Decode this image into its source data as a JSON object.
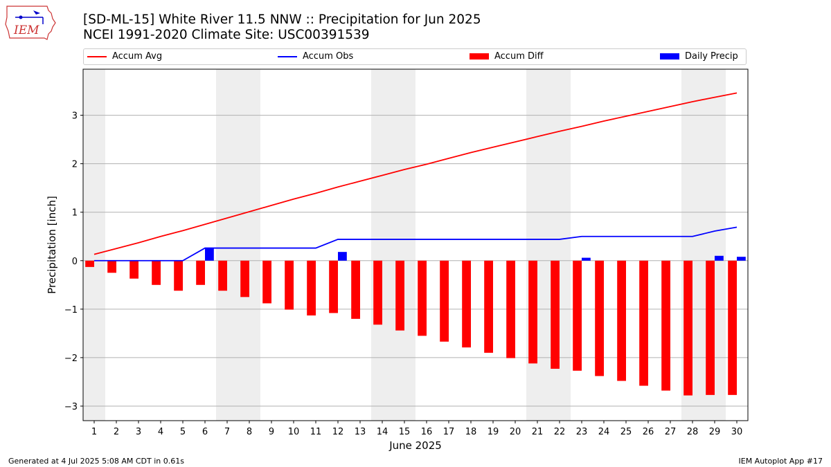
{
  "header": {
    "title_line1": "[SD-ML-15] White River 11.5 NNW :: Precipitation for Jun 2025",
    "title_line2": "NCEI 1991-2020 Climate Site: USC00391539",
    "logo_text": "IEM"
  },
  "footer": {
    "generated": "Generated at 4 Jul 2025 5:08 AM CDT in 0.61s",
    "app": "IEM Autoplot App #17"
  },
  "colors": {
    "accum_avg": "#ff0000",
    "accum_obs": "#0000ff",
    "accum_diff": "#ff0000",
    "daily_precip": "#0000ff",
    "weekend_band": "#eeeeee",
    "grid": "#b0b0b0"
  },
  "chart_data": {
    "type": "bar",
    "xlabel": "June 2025",
    "ylabel": "Precipitation [inch]",
    "ylim": [
      -3.3,
      3.95
    ],
    "xlim": [
      0.5,
      30.5
    ],
    "yticks": [
      -3,
      -2,
      -1,
      0,
      1,
      2,
      3
    ],
    "ytick_labels": [
      "−3",
      "−2",
      "−1",
      "0",
      "1",
      "2",
      "3"
    ],
    "grid": "y-axis on",
    "legend_position": "top, above plot",
    "shaded_day_ranges": [
      [
        0.5,
        1.5
      ],
      [
        6.5,
        8.5
      ],
      [
        13.5,
        15.5
      ],
      [
        20.5,
        22.5
      ],
      [
        27.5,
        29.5
      ]
    ],
    "days": [
      1,
      2,
      3,
      4,
      5,
      6,
      7,
      8,
      9,
      10,
      11,
      12,
      13,
      14,
      15,
      16,
      17,
      18,
      19,
      20,
      21,
      22,
      23,
      24,
      25,
      26,
      27,
      28,
      29,
      30
    ],
    "series": [
      {
        "name": "Accum Avg",
        "kind": "line",
        "values": [
          0.13,
          0.25,
          0.37,
          0.5,
          0.62,
          0.75,
          0.88,
          1.01,
          1.14,
          1.27,
          1.39,
          1.52,
          1.64,
          1.76,
          1.88,
          1.99,
          2.11,
          2.23,
          2.34,
          2.45,
          2.56,
          2.67,
          2.77,
          2.88,
          2.98,
          3.08,
          3.18,
          3.28,
          3.37,
          3.46
        ]
      },
      {
        "name": "Accum Obs",
        "kind": "line",
        "values": [
          0.0,
          0.0,
          0.0,
          0.0,
          0.0,
          0.26,
          0.26,
          0.26,
          0.26,
          0.26,
          0.26,
          0.44,
          0.44,
          0.44,
          0.44,
          0.44,
          0.44,
          0.44,
          0.44,
          0.44,
          0.44,
          0.44,
          0.5,
          0.5,
          0.5,
          0.5,
          0.5,
          0.5,
          0.61,
          0.69
        ]
      },
      {
        "name": "Accum Diff",
        "kind": "bar",
        "values": [
          -0.13,
          -0.25,
          -0.37,
          -0.5,
          -0.62,
          -0.5,
          -0.62,
          -0.75,
          -0.88,
          -1.01,
          -1.13,
          -1.08,
          -1.2,
          -1.32,
          -1.44,
          -1.55,
          -1.67,
          -1.79,
          -1.9,
          -2.01,
          -2.12,
          -2.23,
          -2.27,
          -2.38,
          -2.48,
          -2.58,
          -2.68,
          -2.78,
          -2.77,
          -2.77
        ]
      },
      {
        "name": "Daily Precip",
        "kind": "bar",
        "values": [
          0,
          0,
          0,
          0,
          0,
          0.26,
          0,
          0,
          0,
          0,
          0,
          0.18,
          0,
          0,
          0,
          0,
          0,
          0,
          0,
          0,
          0,
          0,
          0.06,
          0,
          0,
          0,
          0,
          0,
          0.1,
          0.08
        ]
      }
    ]
  }
}
